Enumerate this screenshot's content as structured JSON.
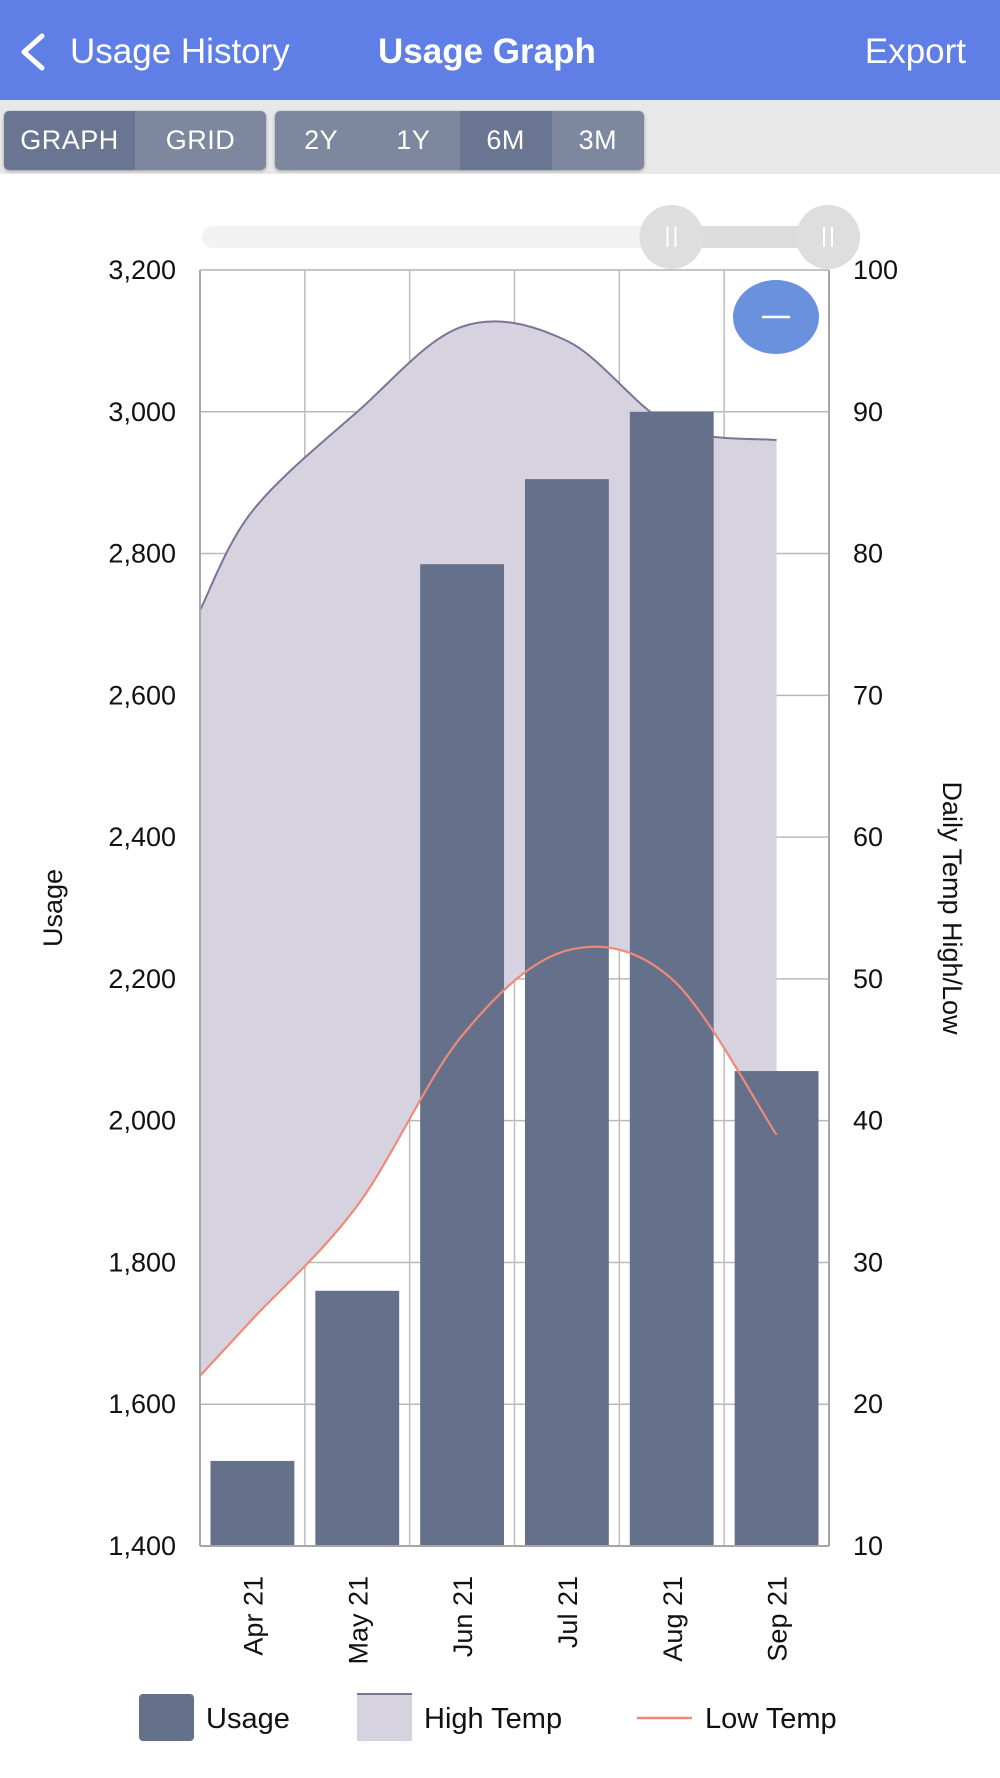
{
  "header": {
    "back_label": "Usage History",
    "title": "Usage Graph",
    "export_label": "Export"
  },
  "view_toggle": {
    "options": [
      "GRAPH",
      "GRID"
    ],
    "selected": "GRAPH"
  },
  "range_toggle": {
    "options": [
      "2Y",
      "1Y",
      "6M",
      "3M"
    ],
    "selected": "6M"
  },
  "colors": {
    "header_bg": "#5f7fe6",
    "usage_bar": "#65718b",
    "high_fill": "#d6d2df",
    "high_line": "#7b7595",
    "low_line": "#f08a78",
    "zoom_button": "#6a91de"
  },
  "zoom_button_icon": "minus-icon",
  "chart_data": {
    "type": "bar",
    "categories": [
      "Apr 21",
      "May 21",
      "Jun 21",
      "Jul 21",
      "Aug 21",
      "Sep 21"
    ],
    "series": [
      {
        "name": "Usage",
        "axis": "left",
        "kind": "bar",
        "values": [
          1520,
          1760,
          2785,
          2905,
          3000,
          2070
        ]
      },
      {
        "name": "High Temp",
        "axis": "right",
        "kind": "area",
        "x": [
          0,
          0.5,
          1.5,
          2.5,
          3.5,
          4.5,
          5.5
        ],
        "values": [
          76,
          83,
          90,
          96,
          95,
          89,
          88
        ]
      },
      {
        "name": "Low Temp",
        "axis": "right",
        "kind": "line",
        "x": [
          0,
          0.5,
          1.5,
          2.5,
          3.5,
          4.5,
          5.5
        ],
        "values": [
          22,
          26,
          34,
          46,
          52,
          50,
          39
        ]
      }
    ],
    "left_axis": {
      "label": "Usage",
      "min": 1400,
      "max": 3200,
      "step": 200,
      "ticks": [
        "1,400",
        "1,600",
        "1,800",
        "2,000",
        "2,200",
        "2,400",
        "2,600",
        "2,800",
        "3,000",
        "3,200"
      ]
    },
    "right_axis": {
      "label": "Daily Temp High/Low",
      "min": 10,
      "max": 100,
      "step": 10,
      "ticks": [
        "10",
        "20",
        "30",
        "40",
        "50",
        "60",
        "70",
        "80",
        "90",
        "100"
      ]
    },
    "grid": true,
    "legend": {
      "placement": "bottom",
      "entries": [
        "Usage",
        "High Temp",
        "Low Temp"
      ]
    },
    "range_slider": {
      "start_fraction": 0.75,
      "end_fraction": 1.0
    }
  }
}
